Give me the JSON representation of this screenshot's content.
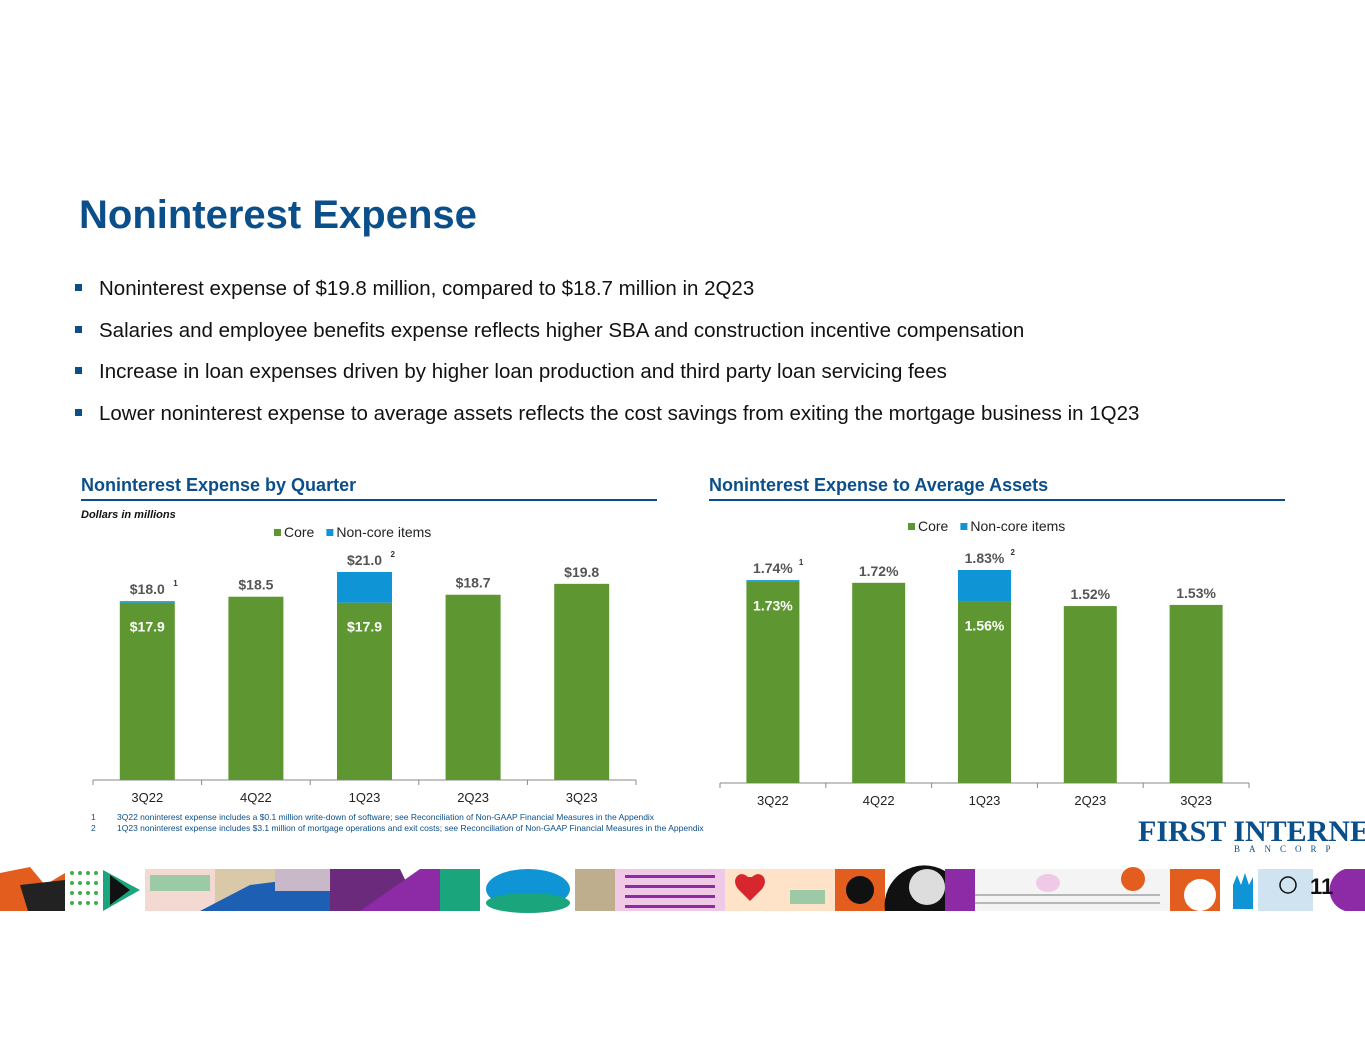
{
  "slide": {
    "title": "Noninterest Expense",
    "bullets": [
      "Noninterest expense of $19.8 million, compared to $18.7 million in 2Q23",
      "Salaries and employee benefits expense reflects higher SBA and construction incentive compensation",
      "Increase in loan expenses driven by higher loan production and third party loan servicing fees",
      "Lower noninterest expense to average assets reflects the cost savings from exiting the mortgage business in 1Q23"
    ],
    "left_section_title": "Noninterest Expense by Quarter",
    "left_subnote": "Dollars in millions",
    "right_section_title": "Noninterest Expense to Average Assets",
    "footnotes": [
      {
        "num": "1",
        "text": "3Q22 noninterest expense includes a $0.1 million write-down of software; see Reconciliation of Non-GAAP Financial Measures in the Appendix"
      },
      {
        "num": "2",
        "text": "1Q23 noninterest expense includes $3.1 million of mortgage operations and exit costs; see Reconciliation of Non-GAAP Financial Measures in the Appendix"
      }
    ],
    "logo_main": "FIRST INTERNET",
    "logo_sub": "BANCORP",
    "page_number": "11",
    "colors": {
      "core": "#5e9732",
      "noncore": "#0f95d6",
      "accent": "#0b4f8a"
    }
  },
  "chart_data": [
    {
      "type": "bar",
      "stacked": true,
      "categories": [
        "3Q22",
        "4Q22",
        "1Q23",
        "2Q23",
        "3Q23"
      ],
      "series": [
        {
          "name": "Core",
          "values": [
            17.9,
            18.5,
            17.9,
            18.7,
            19.8
          ]
        },
        {
          "name": "Non-core items",
          "values": [
            0.1,
            0,
            3.1,
            0,
            0
          ]
        }
      ],
      "total_labels": [
        "$18.0",
        "$18.5",
        "$21.0",
        "$18.7",
        "$19.8"
      ],
      "core_labels": [
        "$17.9",
        "",
        "$17.9",
        "",
        ""
      ],
      "footnote_marks": [
        "1",
        "",
        "2",
        "",
        ""
      ],
      "ylim": [
        0,
        21.5
      ],
      "legend": "top-center"
    },
    {
      "type": "bar",
      "stacked": true,
      "categories": [
        "3Q22",
        "4Q22",
        "1Q23",
        "2Q23",
        "3Q23"
      ],
      "series": [
        {
          "name": "Core",
          "values": [
            1.73,
            1.72,
            1.56,
            1.52,
            1.53
          ]
        },
        {
          "name": "Non-core items",
          "values": [
            0.01,
            0,
            0.27,
            0,
            0
          ]
        }
      ],
      "total_labels": [
        "1.74%",
        "1.72%",
        "1.83%",
        "1.52%",
        "1.53%"
      ],
      "core_labels": [
        "1.73%",
        "",
        "1.56%",
        "",
        ""
      ],
      "footnote_marks": [
        "1",
        "",
        "2",
        "",
        ""
      ],
      "ylim": [
        0,
        1.83
      ],
      "legend": "top-center"
    }
  ]
}
